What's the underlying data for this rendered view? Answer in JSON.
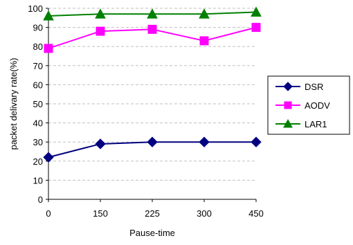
{
  "chart_data": {
    "type": "line",
    "title": "",
    "xlabel": "Pause-time",
    "ylabel": "packet delivary rate(%)",
    "categories": [
      "0",
      "150",
      "225",
      "300",
      "450"
    ],
    "ylim": [
      0,
      100
    ],
    "yticks": [
      0,
      10,
      20,
      30,
      40,
      50,
      60,
      70,
      80,
      90,
      100
    ],
    "grid": true,
    "legend_position": "right",
    "series": [
      {
        "name": "DSR",
        "values": [
          22,
          29,
          30,
          30,
          30
        ],
        "color": "#000080",
        "marker": "diamond"
      },
      {
        "name": "AODV",
        "values": [
          79,
          88,
          89,
          83,
          90
        ],
        "color": "#ff00ff",
        "marker": "square"
      },
      {
        "name": "LAR1",
        "values": [
          96,
          97,
          97,
          97,
          98
        ],
        "color": "#008000",
        "marker": "triangle"
      }
    ]
  }
}
